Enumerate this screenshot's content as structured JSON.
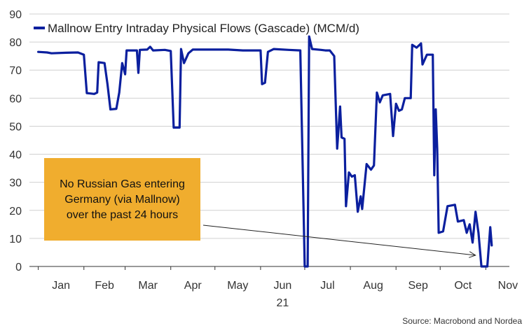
{
  "chart_data": {
    "type": "line",
    "title": "",
    "xlabel": "",
    "ylabel": "",
    "ylim": [
      0,
      90
    ],
    "yticks": [
      0,
      10,
      20,
      30,
      40,
      50,
      60,
      70,
      80,
      90
    ],
    "x_ticks": [
      "Jan",
      "Feb",
      "Mar",
      "Apr",
      "May",
      "Jun",
      "Jul",
      "Aug",
      "Sep",
      "Oct",
      "Nov"
    ],
    "year_label": "21",
    "grid": "horizontal",
    "legend_position": "top-left",
    "series": [
      {
        "name": "Mallnow Entry Intraday Physical Flows (Gascade) (MCM/d)",
        "color": "#0b1f9e",
        "points": [
          [
            "2021-01-01",
            76.5
          ],
          [
            "2021-01-07",
            76.3
          ],
          [
            "2021-01-10",
            76.0
          ],
          [
            "2021-01-20",
            76.2
          ],
          [
            "2021-01-28",
            76.3
          ],
          [
            "2021-02-01",
            75.5
          ],
          [
            "2021-02-03",
            61.8
          ],
          [
            "2021-02-08",
            61.5
          ],
          [
            "2021-02-10",
            62.0
          ],
          [
            "2021-02-11",
            72.8
          ],
          [
            "2021-02-15",
            72.5
          ],
          [
            "2021-02-17",
            65.0
          ],
          [
            "2021-02-19",
            56.0
          ],
          [
            "2021-02-23",
            56.2
          ],
          [
            "2021-02-25",
            62.0
          ],
          [
            "2021-02-27",
            72.5
          ],
          [
            "2021-03-01",
            68.5
          ],
          [
            "2021-03-02",
            77.0
          ],
          [
            "2021-03-09",
            77.0
          ],
          [
            "2021-03-10",
            69.0
          ],
          [
            "2021-03-11",
            77.2
          ],
          [
            "2021-03-16",
            77.3
          ],
          [
            "2021-03-18",
            78.3
          ],
          [
            "2021-03-20",
            77.0
          ],
          [
            "2021-03-28",
            77.2
          ],
          [
            "2021-04-01",
            76.8
          ],
          [
            "2021-04-03",
            49.5
          ],
          [
            "2021-04-07",
            49.5
          ],
          [
            "2021-04-08",
            77.5
          ],
          [
            "2021-04-10",
            72.5
          ],
          [
            "2021-04-13",
            76.0
          ],
          [
            "2021-04-16",
            77.3
          ],
          [
            "2021-05-01",
            77.3
          ],
          [
            "2021-05-10",
            77.3
          ],
          [
            "2021-05-20",
            77.0
          ],
          [
            "2021-06-01",
            77.0
          ],
          [
            "2021-06-02",
            65.0
          ],
          [
            "2021-06-04",
            65.5
          ],
          [
            "2021-06-06",
            76.5
          ],
          [
            "2021-06-10",
            77.5
          ],
          [
            "2021-06-20",
            77.2
          ],
          [
            "2021-06-28",
            77.0
          ],
          [
            "2021-07-01",
            0.0
          ],
          [
            "2021-07-03",
            0.0
          ],
          [
            "2021-07-04",
            82.0
          ],
          [
            "2021-07-06",
            77.5
          ],
          [
            "2021-07-12",
            77.2
          ],
          [
            "2021-07-15",
            77.0
          ],
          [
            "2021-07-18",
            77.0
          ],
          [
            "2021-07-21",
            75.0
          ],
          [
            "2021-07-23",
            42.0
          ],
          [
            "2021-07-25",
            57.0
          ],
          [
            "2021-07-26",
            46.0
          ],
          [
            "2021-07-28",
            45.5
          ],
          [
            "2021-07-29",
            21.5
          ],
          [
            "2021-07-31",
            33.5
          ],
          [
            "2021-08-02",
            32.0
          ],
          [
            "2021-08-04",
            32.5
          ],
          [
            "2021-08-06",
            19.5
          ],
          [
            "2021-08-08",
            25.0
          ],
          [
            "2021-08-09",
            20.5
          ],
          [
            "2021-08-12",
            36.5
          ],
          [
            "2021-08-15",
            34.5
          ],
          [
            "2021-08-17",
            36.0
          ],
          [
            "2021-08-19",
            62.0
          ],
          [
            "2021-08-21",
            58.5
          ],
          [
            "2021-08-23",
            61.0
          ],
          [
            "2021-08-28",
            61.5
          ],
          [
            "2021-08-30",
            46.5
          ],
          [
            "2021-09-01",
            58.0
          ],
          [
            "2021-09-03",
            55.5
          ],
          [
            "2021-09-05",
            56.0
          ],
          [
            "2021-09-07",
            60.0
          ],
          [
            "2021-09-11",
            60.0
          ],
          [
            "2021-09-12",
            79.0
          ],
          [
            "2021-09-15",
            78.0
          ],
          [
            "2021-09-18",
            79.5
          ],
          [
            "2021-09-19",
            72.0
          ],
          [
            "2021-09-22",
            75.5
          ],
          [
            "2021-09-26",
            75.5
          ],
          [
            "2021-09-27",
            32.5
          ],
          [
            "2021-09-28",
            56.0
          ],
          [
            "2021-09-29",
            42.0
          ],
          [
            "2021-09-30",
            12.0
          ],
          [
            "2021-10-03",
            12.5
          ],
          [
            "2021-10-06",
            21.5
          ],
          [
            "2021-10-11",
            22.0
          ],
          [
            "2021-10-13",
            16.0
          ],
          [
            "2021-10-17",
            16.5
          ],
          [
            "2021-10-19",
            12.0
          ],
          [
            "2021-10-21",
            15.0
          ],
          [
            "2021-10-23",
            8.5
          ],
          [
            "2021-10-25",
            19.5
          ],
          [
            "2021-10-27",
            12.0
          ],
          [
            "2021-10-29",
            0.0
          ],
          [
            "2021-11-02",
            0.0
          ],
          [
            "2021-11-04",
            14.0
          ],
          [
            "2021-11-05",
            7.5
          ]
        ]
      }
    ],
    "annotation": {
      "lines": [
        "No Russian Gas entering",
        "Germany (via Mallnow)",
        "over the past 24 hours"
      ],
      "box_color": "#f0ad2e",
      "arrow_to": [
        "2021-10-25",
        4.0
      ]
    },
    "source": "Source: Macrobond and Nordea"
  }
}
